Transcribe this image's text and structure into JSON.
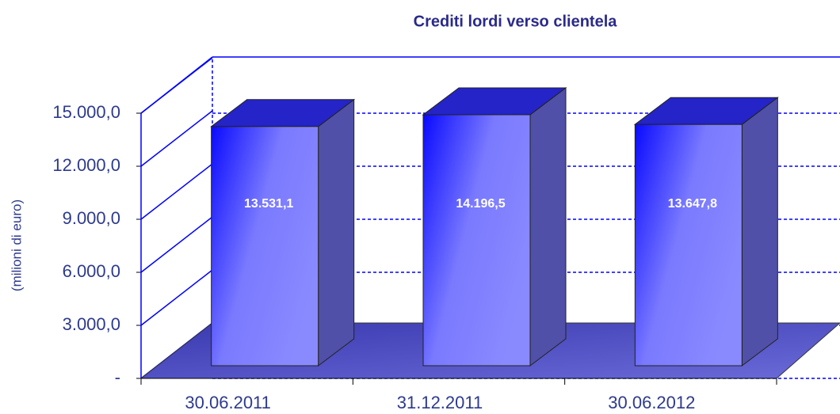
{
  "chart_data": {
    "type": "bar3d",
    "title": "Crediti lordi verso clientela",
    "y_label": "(milioni di euro)",
    "categories": [
      "30.06.2011",
      "31.12.2011",
      "30.06.2012"
    ],
    "values": [
      13531.1,
      14196.5,
      13647.8
    ],
    "value_labels": [
      "13.531,1",
      "14.196,5",
      "13.647,8"
    ],
    "color": "#7a7aff",
    "ylim": [
      0,
      15000
    ],
    "yticks": [
      {
        "value": 0,
        "label": "-"
      },
      {
        "value": 3000,
        "label": "3.000,0"
      },
      {
        "value": 6000,
        "label": "6.000,0"
      },
      {
        "value": 9000,
        "label": "9.000,0"
      },
      {
        "value": 12000,
        "label": "12.000,0"
      },
      {
        "value": 15000,
        "label": "15.000,0"
      }
    ],
    "grid": true
  }
}
